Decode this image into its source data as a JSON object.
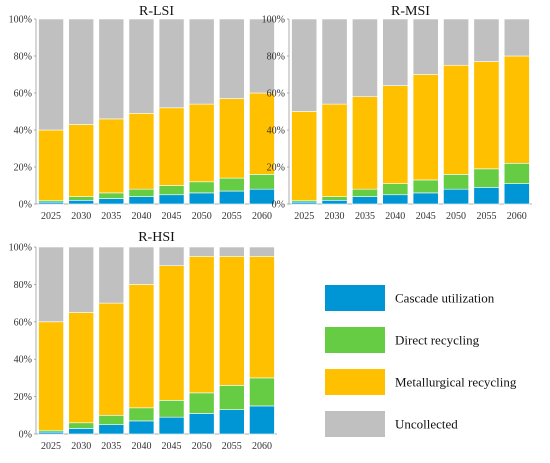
{
  "colors": {
    "cascade": "#0096D6",
    "direct": "#66CC44",
    "metallurgical": "#FFC000",
    "uncollected": "#C0C0C0"
  },
  "legend": [
    {
      "key": "cascade",
      "label": "Cascade utilization"
    },
    {
      "key": "direct",
      "label": "Direct recycling"
    },
    {
      "key": "metallurgical",
      "label": "Metallurgical recycling"
    },
    {
      "key": "uncollected",
      "label": "Uncollected"
    }
  ],
  "chart_data": [
    {
      "type": "bar",
      "stacked": true,
      "title": "R-LSI",
      "categories": [
        "2025",
        "2030",
        "2035",
        "2040",
        "2045",
        "2050",
        "2055",
        "2060"
      ],
      "ylim": [
        0,
        100
      ],
      "yticks": [
        "0%",
        "20%",
        "40%",
        "60%",
        "80%",
        "100%"
      ],
      "series": [
        {
          "name": "Cascade utilization",
          "key": "cascade",
          "values": [
            1,
            2,
            3,
            4,
            5,
            6,
            7,
            8
          ]
        },
        {
          "name": "Direct recycling",
          "key": "direct",
          "values": [
            1,
            2,
            3,
            4,
            5,
            6,
            7,
            8
          ]
        },
        {
          "name": "Metallurgical recycling",
          "key": "metallurgical",
          "values": [
            38,
            39,
            40,
            41,
            42,
            42,
            43,
            44
          ]
        },
        {
          "name": "Uncollected",
          "key": "uncollected",
          "values": [
            60,
            57,
            54,
            51,
            48,
            46,
            43,
            40
          ]
        }
      ]
    },
    {
      "type": "bar",
      "stacked": true,
      "title": "R-MSI",
      "categories": [
        "2025",
        "2030",
        "2035",
        "2040",
        "2045",
        "2050",
        "2055",
        "2060"
      ],
      "ylim": [
        0,
        100
      ],
      "yticks": [
        "0%",
        "20%",
        "40%",
        "60%",
        "80%",
        "100%"
      ],
      "series": [
        {
          "name": "Cascade utilization",
          "key": "cascade",
          "values": [
            1,
            2,
            4,
            5,
            6,
            8,
            9,
            11
          ]
        },
        {
          "name": "Direct recycling",
          "key": "direct",
          "values": [
            1,
            2,
            4,
            6,
            7,
            8,
            10,
            11
          ]
        },
        {
          "name": "Metallurgical recycling",
          "key": "metallurgical",
          "values": [
            48,
            50,
            50,
            53,
            57,
            59,
            58,
            58
          ]
        },
        {
          "name": "Uncollected",
          "key": "uncollected",
          "values": [
            50,
            46,
            42,
            36,
            30,
            25,
            23,
            20
          ]
        }
      ]
    },
    {
      "type": "bar",
      "stacked": true,
      "title": "R-HSI",
      "categories": [
        "2025",
        "2030",
        "2035",
        "2040",
        "2045",
        "2050",
        "2055",
        "2060"
      ],
      "ylim": [
        0,
        100
      ],
      "yticks": [
        "0%",
        "20%",
        "40%",
        "60%",
        "80%",
        "100%"
      ],
      "series": [
        {
          "name": "Cascade utilization",
          "key": "cascade",
          "values": [
            1,
            3,
            5,
            7,
            9,
            11,
            13,
            15
          ]
        },
        {
          "name": "Direct recycling",
          "key": "direct",
          "values": [
            1,
            3,
            5,
            7,
            9,
            11,
            13,
            15
          ]
        },
        {
          "name": "Metallurgical recycling",
          "key": "metallurgical",
          "values": [
            58,
            59,
            60,
            66,
            72,
            73,
            69,
            65
          ]
        },
        {
          "name": "Uncollected",
          "key": "uncollected",
          "values": [
            40,
            35,
            30,
            20,
            10,
            5,
            5,
            5
          ]
        }
      ]
    }
  ]
}
